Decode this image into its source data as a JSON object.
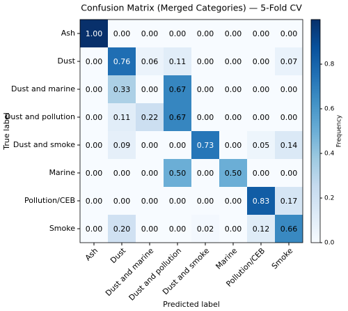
{
  "chart_data": {
    "type": "heatmap",
    "title": "Confusion Matrix (Merged Categories) — 5-Fold CV",
    "x_label": "Predicted label",
    "y_label": "True label",
    "colorbar_label": "Frequency",
    "colormap": "Blues",
    "x_categories": [
      "Ash",
      "Dust",
      "Dust and marine",
      "Dust and pollution",
      "Dust and smoke",
      "Marine",
      "Pollution/CEB",
      "Smoke"
    ],
    "y_categories": [
      "Ash",
      "Dust",
      "Dust and marine",
      "Dust and pollution",
      "Dust and smoke",
      "Marine",
      "Pollution/CEB",
      "Smoke"
    ],
    "values": [
      [
        1,
        0,
        0,
        0,
        0,
        0,
        0,
        0
      ],
      [
        0,
        0.76,
        0.06,
        0.11,
        0,
        0,
        0,
        0.07
      ],
      [
        0,
        0.33,
        0,
        0.67,
        0,
        0,
        0,
        0
      ],
      [
        0,
        0.11,
        0.22,
        0.67,
        0,
        0,
        0,
        0
      ],
      [
        0,
        0.09,
        0,
        0,
        0.73,
        0,
        0.05,
        0.14
      ],
      [
        0,
        0,
        0,
        0.5,
        0,
        0.5,
        0,
        0
      ],
      [
        0,
        0,
        0,
        0,
        0,
        0,
        0.83,
        0.17
      ],
      [
        0,
        0.2,
        0,
        0,
        0.02,
        0,
        0.12,
        0.66
      ]
    ],
    "value_labels": [
      [
        "1.00",
        "0.00",
        "0.00",
        "0.00",
        "0.00",
        "0.00",
        "0.00",
        "0.00"
      ],
      [
        "0.00",
        "0.76",
        "0.06",
        "0.11",
        "0.00",
        "0.00",
        "0.00",
        "0.07"
      ],
      [
        "0.00",
        "0.33",
        "0.00",
        "0.67",
        "0.00",
        "0.00",
        "0.00",
        "0.00"
      ],
      [
        "0.00",
        "0.11",
        "0.22",
        "0.67",
        "0.00",
        "0.00",
        "0.00",
        "0.00"
      ],
      [
        "0.00",
        "0.09",
        "0.00",
        "0.00",
        "0.73",
        "0.00",
        "0.05",
        "0.14"
      ],
      [
        "0.00",
        "0.00",
        "0.00",
        "0.50",
        "0.00",
        "0.50",
        "0.00",
        "0.00"
      ],
      [
        "0.00",
        "0.00",
        "0.00",
        "0.00",
        "0.00",
        "0.00",
        "0.83",
        "0.17"
      ],
      [
        "0.00",
        "0.20",
        "0.00",
        "0.00",
        "0.02",
        "0.00",
        "0.12",
        "0.66"
      ]
    ],
    "colorbar_lim": [
      0,
      1
    ],
    "colorbar_ticks": [
      {
        "value": 0,
        "label": "0.0"
      },
      {
        "value": 0.2,
        "label": "0.2"
      },
      {
        "value": 0.4,
        "label": "0.4"
      },
      {
        "value": 0.6,
        "label": "0.6"
      },
      {
        "value": 0.8,
        "label": "0.8"
      }
    ]
  }
}
